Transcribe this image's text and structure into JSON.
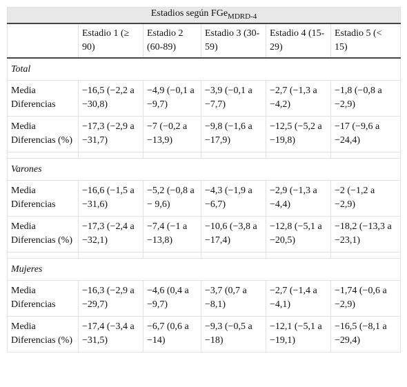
{
  "header": {
    "title": "Estadios según FGe",
    "subscript": "MDRD-4",
    "columns": [
      "Estadio 1 (≥ 90)",
      "Estadio 2 (60-89)",
      "Estadio 3 (30-59)",
      "Estadio 4 (15-29)",
      "Estadio 5 (< 15)"
    ]
  },
  "sections": [
    {
      "label": "Total",
      "rows": [
        {
          "label": "Media Diferencias",
          "cells": [
            "−16,5 (−2,2 a −30,8)",
            "−4,9 (−0,1 a −9,7)",
            "−3,9 (−0,1 a −7,7)",
            "−2,7 (−1,3 a −4,2)",
            "−1,8 (−0,8 a −2,9)"
          ]
        },
        {
          "label": "Media Diferencias (%)",
          "cells": [
            "−17,3 (−2,9 a −31,7)",
            "−7 (−0,2 a −13,9)",
            "−9,8 (−1,6 a −17,9)",
            "−12,5 (−5,2 a −19,8)",
            "−17 (−9,6 a −24,4)"
          ]
        }
      ]
    },
    {
      "label": "Varones",
      "rows": [
        {
          "label": "Media Diferencias",
          "cells": [
            "−16,6 (−1,5 a −31,6)",
            "−5,2 (−0,8 a − 9,6)",
            "−4,3 (−1,9 a −6,7)",
            "−2,9 (−1,3 a −4,4)",
            "−2 (−1,2 a −2,9)"
          ]
        },
        {
          "label": "Media Diferencias (%)",
          "cells": [
            "−17,3 (−2,4 a −32,1)",
            "−7,4 (−1 a −13,8)",
            "−10,6 (−3,8 a −17,4)",
            "−12,8 (−5,1 a −20,5)",
            "−18,2 (−13,3 a −23,1)"
          ]
        }
      ]
    },
    {
      "label": "Mujeres",
      "rows": [
        {
          "label": "Media Diferencias",
          "cells": [
            "−16,3 (−2,9 a −29,7)",
            "−4,6 (0,4 a −9,7)",
            "−3,7 (0,7 a −8,1)",
            "−2,7 (−1,4 a −4,1)",
            "−1,74 (−0,6 a −2,9)"
          ]
        },
        {
          "label": "Media Diferencias (%)",
          "cells": [
            "−17,4 (−3,4 a −31,5)",
            "−6,7 (0,6 a −14)",
            "−9,3 (−0,5 a −18)",
            "−12,1 (−5,1 a −19,1)",
            "−16,5 (−8,1 a −29,4)"
          ]
        }
      ]
    }
  ]
}
